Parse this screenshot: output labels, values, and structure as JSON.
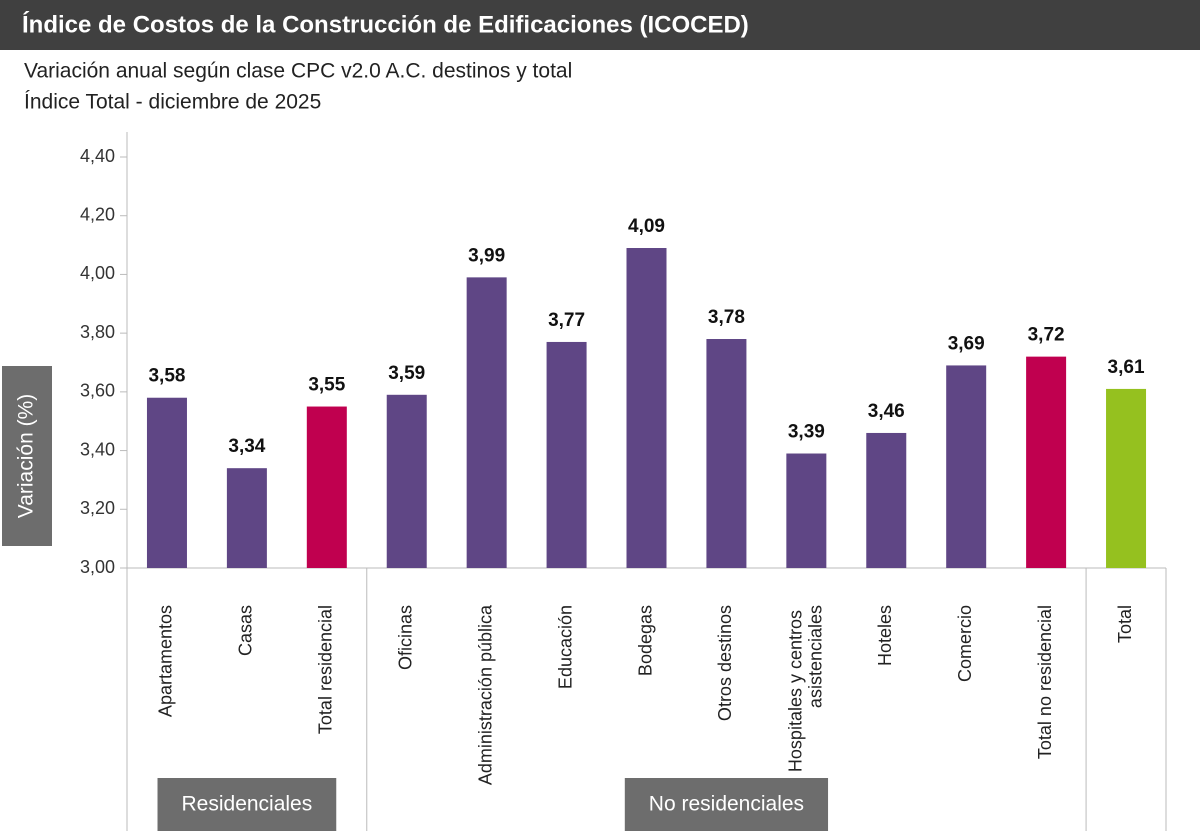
{
  "chart_data": {
    "type": "bar",
    "title": "Índice de Costos de la Construcción de Edificaciones (ICOCED)",
    "subtitle": [
      "Variación anual según clase CPC v2.0 A.C. destinos y total",
      "Índice Total - diciembre de 2025"
    ],
    "y_label": "Variación (%)",
    "categories": [
      "Apartamentos",
      "Casas",
      "Total residencial",
      "Oficinas",
      "Administración pública",
      "Educación",
      "Bodegas",
      "Otros destinos",
      "Hospitales y centros asistenciales",
      "Hoteles",
      "Comercio",
      "Total no residencial",
      "Total"
    ],
    "values": [
      3.58,
      3.34,
      3.55,
      3.59,
      3.99,
      3.77,
      4.09,
      3.78,
      3.39,
      3.46,
      3.69,
      3.72,
      3.61
    ],
    "value_labels": [
      "3,58",
      "3,34",
      "3,55",
      "3,59",
      "3,99",
      "3,77",
      "4,09",
      "3,78",
      "3,39",
      "3,46",
      "3,69",
      "3,72",
      "3,61"
    ],
    "colors": [
      "#5f4685",
      "#5f4685",
      "#c0004f",
      "#5f4685",
      "#5f4685",
      "#5f4685",
      "#5f4685",
      "#5f4685",
      "#5f4685",
      "#5f4685",
      "#5f4685",
      "#c0004f",
      "#95c11f"
    ],
    "groups": [
      {
        "label": "Residenciales",
        "count": 3
      },
      {
        "label": "No residenciales",
        "count": 9
      },
      {
        "count": 1
      }
    ],
    "ylim": [
      3.0,
      4.4
    ],
    "yticks": [
      {
        "value": 3.0,
        "label": "3,00"
      },
      {
        "value": 3.2,
        "label": "3,20"
      },
      {
        "value": 3.4,
        "label": "3,40"
      },
      {
        "value": 3.6,
        "label": "3,60"
      },
      {
        "value": 3.8,
        "label": "3,80"
      },
      {
        "value": 4.0,
        "label": "4,00"
      },
      {
        "value": 4.2,
        "label": "4,20"
      },
      {
        "value": 4.4,
        "label": "4,40"
      }
    ]
  }
}
